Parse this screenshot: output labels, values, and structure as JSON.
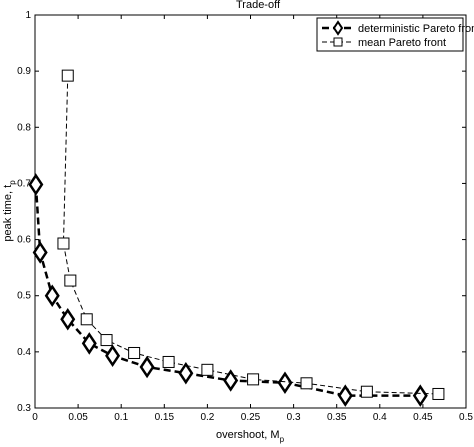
{
  "chart_data": {
    "type": "line",
    "title": "Trade-off",
    "xlabel": "overshoot, M",
    "xlabel_sub": "p",
    "ylabel": "peak time, t",
    "ylabel_sub": "p",
    "xlim": [
      0,
      0.5
    ],
    "ylim": [
      0.3,
      1.0
    ],
    "xticks": [
      0,
      0.05,
      0.1,
      0.15,
      0.2,
      0.25,
      0.3,
      0.35,
      0.4,
      0.45,
      0.5
    ],
    "xtick_labels": [
      "0",
      "0.05",
      "0.1",
      "0.15",
      "0.2",
      "0.25",
      "0.3",
      "0.35",
      "0.4",
      "0.45",
      "0.5"
    ],
    "yticks": [
      0.3,
      0.4,
      0.5,
      0.6,
      0.7,
      0.8,
      0.9,
      1.0
    ],
    "ytick_labels": [
      "0.3",
      "0.4",
      "0.5",
      "0.6",
      "0.7",
      "0.8",
      "0.9",
      "1"
    ],
    "grid": false,
    "legend_position": "top-right",
    "series": [
      {
        "name": "deterministic Pareto front",
        "marker": "diamond",
        "line_style": "dashed-thick",
        "color": "#000000",
        "x": [
          0.001,
          0.006,
          0.02,
          0.038,
          0.063,
          0.09,
          0.13,
          0.175,
          0.227,
          0.29,
          0.36,
          0.447
        ],
        "y": [
          0.698,
          0.577,
          0.5,
          0.458,
          0.415,
          0.393,
          0.373,
          0.362,
          0.349,
          0.345,
          0.322,
          0.322
        ]
      },
      {
        "name": "mean Pareto front",
        "marker": "square",
        "line_style": "dashed-thin",
        "color": "#000000",
        "x": [
          0.038,
          0.033,
          0.041,
          0.06,
          0.083,
          0.115,
          0.155,
          0.2,
          0.253,
          0.315,
          0.385,
          0.468
        ],
        "y": [
          0.892,
          0.593,
          0.527,
          0.458,
          0.421,
          0.398,
          0.382,
          0.368,
          0.351,
          0.344,
          0.329,
          0.325
        ]
      }
    ]
  }
}
